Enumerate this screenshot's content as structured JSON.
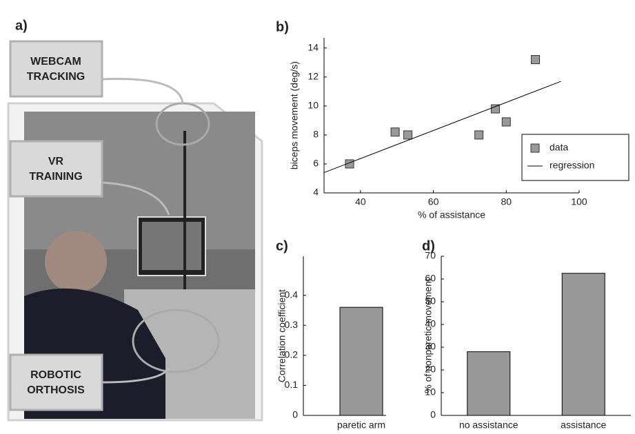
{
  "photo_panel": {
    "panel_label": "a)",
    "callouts": [
      {
        "lines": [
          "WEBCAM",
          "TRACKING"
        ]
      },
      {
        "lines": [
          "VR",
          "TRAINING"
        ]
      },
      {
        "lines": [
          "ROBOTIC",
          "ORTHOSIS"
        ]
      }
    ]
  },
  "chart_data": [
    {
      "type": "scatter",
      "panel_label": "b)",
      "x_label": "% of assistance",
      "y_label": "biceps movement (deg/s)",
      "xlim": [
        30,
        100
      ],
      "xticks": [
        40,
        60,
        80,
        100
      ],
      "ylim": [
        4,
        14.7
      ],
      "yticks": [
        4,
        6,
        8,
        10,
        12,
        14
      ],
      "legend": "right",
      "series": [
        {
          "name": "data",
          "type": "scatter",
          "color": "#999999",
          "x": [
            37,
            49.5,
            53,
            72.5,
            77,
            80,
            88
          ],
          "values": [
            6.0,
            8.2,
            8.0,
            8.0,
            9.8,
            8.9,
            13.2
          ]
        },
        {
          "name": "regression",
          "type": "line",
          "color": "#000000",
          "x": [
            30,
            95
          ],
          "values": [
            5.4,
            11.7
          ]
        }
      ]
    },
    {
      "type": "bar",
      "panel_label": "c)",
      "y_label": "Correlation coefficient",
      "categories": [
        "paretic arm"
      ],
      "values": [
        0.36
      ],
      "color": "#999999",
      "ylim": [
        0,
        0.53
      ],
      "yticks": [
        0,
        0.1,
        0.2,
        0.3,
        0.4
      ]
    },
    {
      "type": "bar",
      "panel_label": "d)",
      "y_label": "% of nonparetic movement",
      "categories": [
        "no assistance",
        "assistance"
      ],
      "values": [
        28,
        62.5
      ],
      "color": "#999999",
      "ylim": [
        0,
        70
      ],
      "yticks": [
        0,
        10,
        20,
        30,
        40,
        50,
        60,
        70
      ]
    }
  ]
}
